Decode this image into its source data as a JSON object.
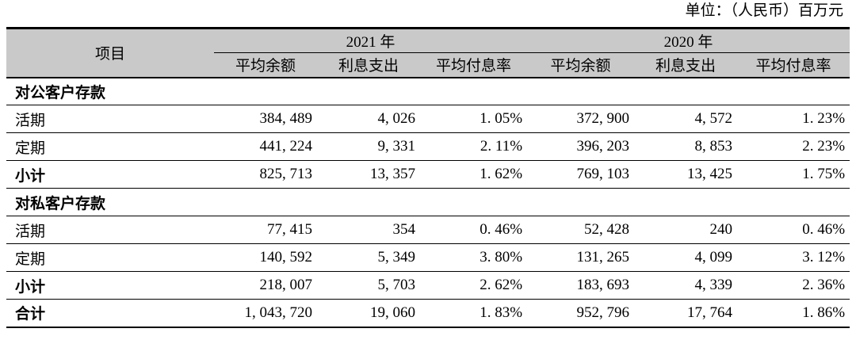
{
  "unit_label": "单位：（人民币）百万元",
  "colors": {
    "header_bg": "#c9c9c9",
    "border": "#000000",
    "text": "#000000"
  },
  "table": {
    "item_header": "项目",
    "year_groups": [
      {
        "label": "2021 年"
      },
      {
        "label": "2020 年"
      }
    ],
    "sub_headers": [
      "平均余额",
      "利息支出",
      "平均付息率"
    ],
    "rows": [
      {
        "type": "section",
        "label": "对公客户存款",
        "values": []
      },
      {
        "type": "data",
        "label": "活期",
        "values": [
          "384, 489",
          "4, 026",
          "1. 05%",
          "372, 900",
          "4, 572",
          "1. 23%"
        ]
      },
      {
        "type": "data",
        "label": "定期",
        "values": [
          "441, 224",
          "9, 331",
          "2. 11%",
          "396, 203",
          "8, 853",
          "2. 23%"
        ]
      },
      {
        "type": "subtotal",
        "label": "小计",
        "values": [
          "825, 713",
          "13, 357",
          "1. 62%",
          "769, 103",
          "13, 425",
          "1. 75%"
        ]
      },
      {
        "type": "section",
        "label": "对私客户存款",
        "values": []
      },
      {
        "type": "data",
        "label": "活期",
        "values": [
          "77, 415",
          "354",
          "0. 46%",
          "52, 428",
          "240",
          "0. 46%"
        ]
      },
      {
        "type": "data",
        "label": "定期",
        "values": [
          "140, 592",
          "5, 349",
          "3. 80%",
          "131, 265",
          "4, 099",
          "3. 12%"
        ]
      },
      {
        "type": "subtotal",
        "label": "小计",
        "values": [
          "218, 007",
          "5, 703",
          "2. 62%",
          "183, 693",
          "4, 339",
          "2. 36%"
        ]
      },
      {
        "type": "total",
        "label": "合计",
        "values": [
          "1, 043, 720",
          "19, 060",
          "1. 83%",
          "952, 796",
          "17, 764",
          "1. 86%"
        ]
      }
    ]
  }
}
